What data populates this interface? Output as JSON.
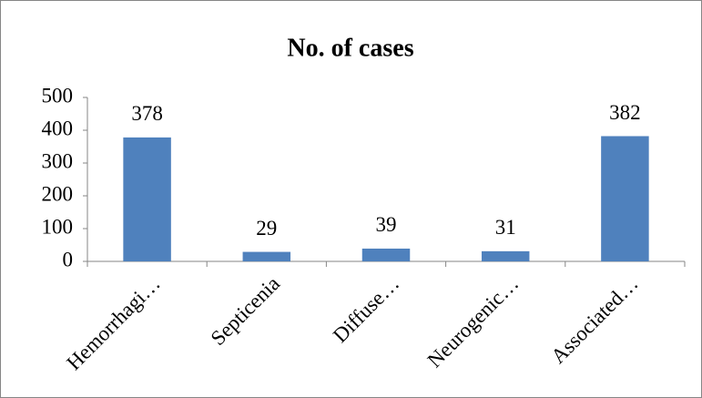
{
  "chart_data": {
    "type": "bar",
    "title": "No. of cases",
    "categories": [
      "Hemorrhagi…",
      "Septicenia",
      "Diffuse…",
      "Neurogenic…",
      "Associated…"
    ],
    "values": [
      378,
      29,
      39,
      31,
      382
    ],
    "color": "#4f81bd",
    "ylim": [
      0,
      500
    ],
    "yticks": [
      0,
      100,
      200,
      300,
      400,
      500
    ],
    "grid": false
  }
}
